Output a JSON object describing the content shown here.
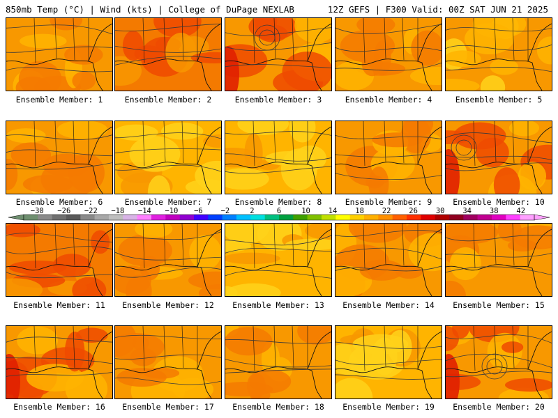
{
  "header": {
    "left": "850mb Temp (°C) | Wind (kts) | College of DuPage NEXLAB",
    "right": "12Z GEFS | F300 Valid: 00Z SAT JUN 21 2025"
  },
  "caption_prefix": "Ensemble Member: ",
  "members": [
    {
      "number": "1",
      "tone": "orange"
    },
    {
      "number": "2",
      "tone": "red-orange"
    },
    {
      "number": "3",
      "tone": "orange-red-west"
    },
    {
      "number": "4",
      "tone": "orange"
    },
    {
      "number": "5",
      "tone": "orange-yellow"
    },
    {
      "number": "6",
      "tone": "orange"
    },
    {
      "number": "7",
      "tone": "yellow-orange"
    },
    {
      "number": "8",
      "tone": "yellow-orange"
    },
    {
      "number": "9",
      "tone": "orange"
    },
    {
      "number": "10",
      "tone": "orange-red-west"
    },
    {
      "number": "11",
      "tone": "red-orange"
    },
    {
      "number": "12",
      "tone": "orange"
    },
    {
      "number": "13",
      "tone": "yellow-orange"
    },
    {
      "number": "14",
      "tone": "orange"
    },
    {
      "number": "15",
      "tone": "orange"
    },
    {
      "number": "16",
      "tone": "orange-red-west"
    },
    {
      "number": "17",
      "tone": "orange"
    },
    {
      "number": "18",
      "tone": "orange"
    },
    {
      "number": "19",
      "tone": "yellow-orange"
    },
    {
      "number": "20",
      "tone": "orange-red-west"
    }
  ],
  "colorbar": {
    "labels": [
      "−30",
      "−26",
      "−22",
      "−18",
      "−14",
      "−10",
      "−6",
      "−2",
      "2",
      "6",
      "10",
      "14",
      "18",
      "22",
      "26",
      "30",
      "34",
      "38",
      "42"
    ],
    "colors": [
      "#6f8f70",
      "#8a8a8a",
      "#707070",
      "#5a5a5a",
      "#8a8a8a",
      "#a8a8a8",
      "#bfbfbf",
      "#d8b3e6",
      "#ff80ff",
      "#e020e0",
      "#c000c0",
      "#9000d0",
      "#4000ff",
      "#0040ff",
      "#0080ff",
      "#00c0ff",
      "#00e0e0",
      "#00c080",
      "#00a040",
      "#40a000",
      "#80c000",
      "#c0e000",
      "#ffff00",
      "#ffd000",
      "#ffb000",
      "#ff9000",
      "#ff6000",
      "#ff3000",
      "#e00000",
      "#b00000",
      "#900020",
      "#a00060",
      "#c00090",
      "#e000c0",
      "#ff40ff",
      "#ffa0ff"
    ]
  },
  "palette": {
    "yellow": "#ffd21a",
    "light_orange": "#ffb400",
    "orange": "#f89800",
    "dark_orange": "#f47a00",
    "red_orange": "#ee4a00",
    "red": "#e02000",
    "line": "#3a3a3a"
  }
}
